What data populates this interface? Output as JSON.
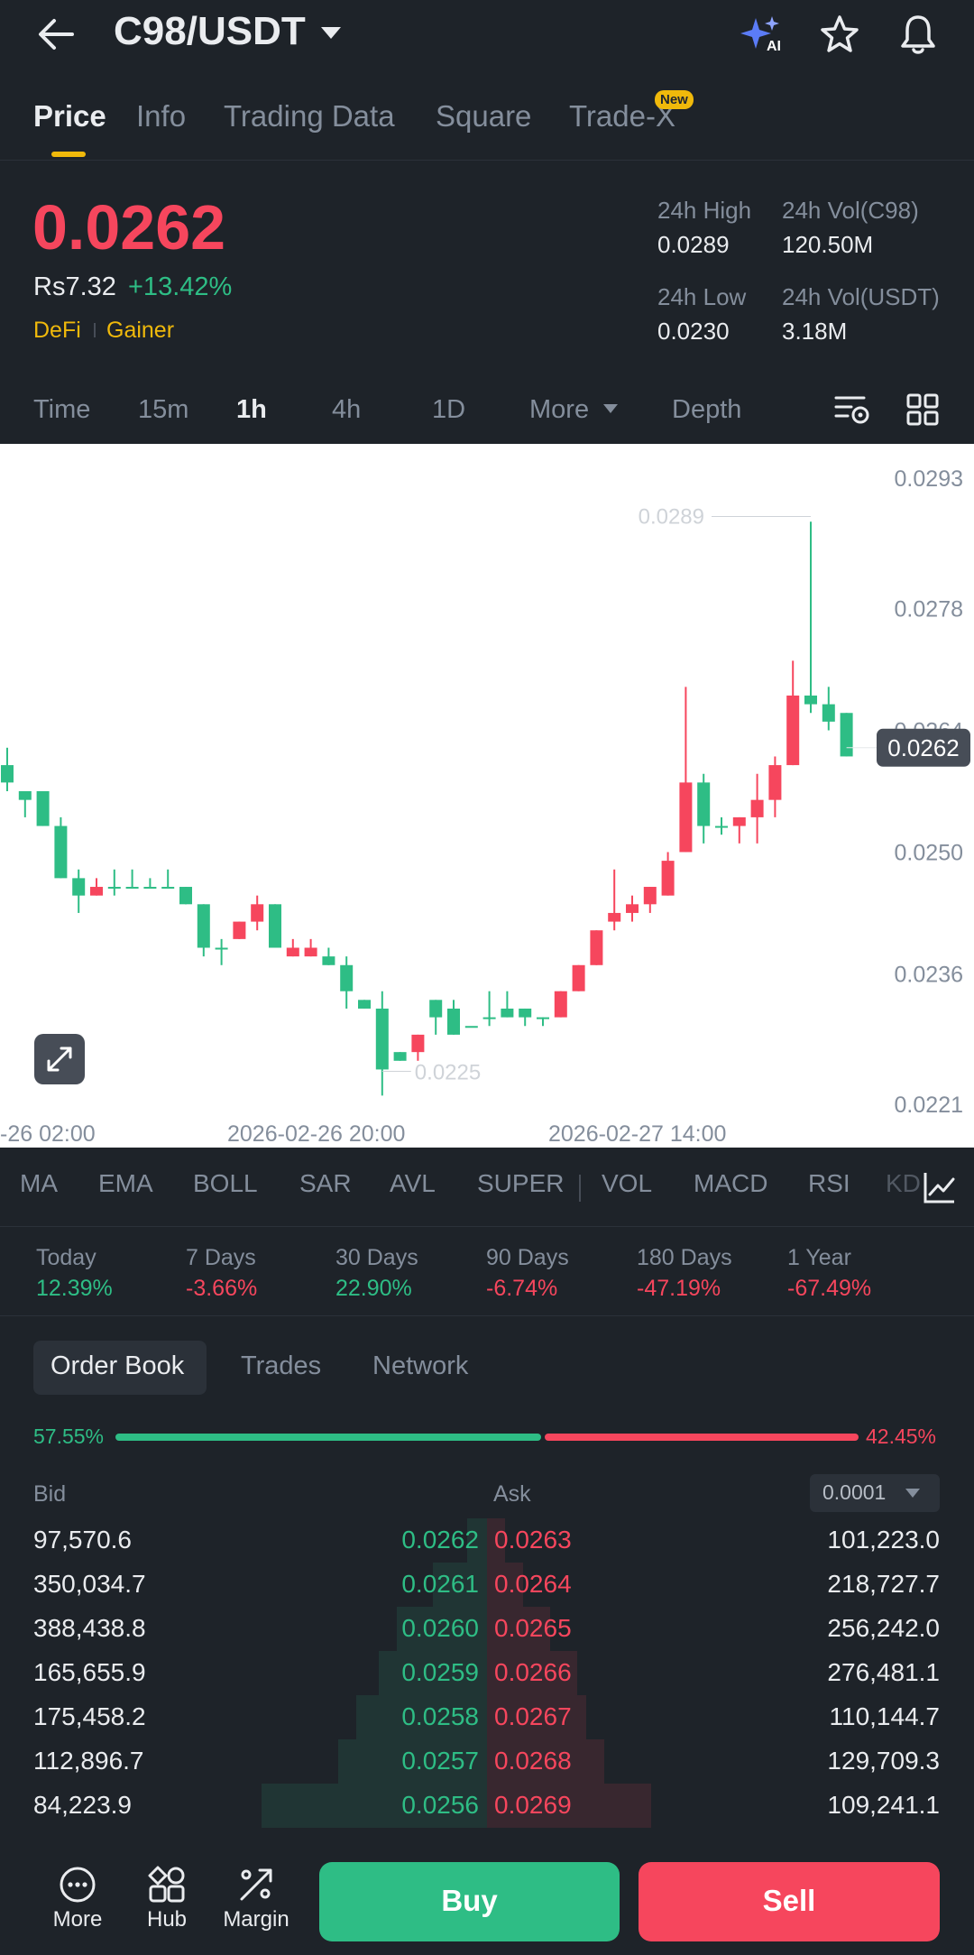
{
  "header": {
    "pair": "C98/USDT"
  },
  "tabs": [
    {
      "label": "Price"
    },
    {
      "label": "Info"
    },
    {
      "label": "Trading Data"
    },
    {
      "label": "Square"
    },
    {
      "label": "Trade-X"
    }
  ],
  "new_badge": "New",
  "price": {
    "last": "0.0262",
    "fiat": "Rs7.32",
    "change": "+13.42%",
    "tags": [
      "DeFi",
      "Gainer"
    ]
  },
  "stats": {
    "high_label": "24h High",
    "high_value": "0.0289",
    "vol_base_label": "24h Vol(C98)",
    "vol_base_value": "120.50M",
    "low_label": "24h Low",
    "low_value": "0.0230",
    "vol_quote_label": "24h Vol(USDT)",
    "vol_quote_value": "3.18M"
  },
  "intervals": [
    "Time",
    "15m",
    "1h",
    "4h",
    "1D",
    "More",
    "Depth"
  ],
  "chart_data": {
    "type": "candlestick",
    "y_ticks": [
      "0.0293",
      "0.0278",
      "0.0264",
      "0.0250",
      "0.0236",
      "0.0221"
    ],
    "x_ticks": [
      "-26 02:00",
      "2026-02-26 20:00",
      "2026-02-27 14:00"
    ],
    "ylim": [
      0.0221,
      0.0293
    ],
    "high_marker": "0.0289",
    "low_marker": "0.0225",
    "current_price": "0.0262",
    "up_color": "#2ebd85",
    "down_color": "#f6465d",
    "candles": [
      [
        0.0258,
        0.026,
        0.0262,
        0.0257
      ],
      [
        0.0256,
        0.0257,
        0.0257,
        0.0254
      ],
      [
        0.0253,
        0.0257,
        0.0257,
        0.0253
      ],
      [
        0.0247,
        0.0253,
        0.0254,
        0.0247
      ],
      [
        0.0245,
        0.0247,
        0.0248,
        0.0243
      ],
      [
        0.0246,
        0.0245,
        0.0247,
        0.0245
      ],
      [
        0.0246,
        0.0246,
        0.0248,
        0.0245
      ],
      [
        0.0246,
        0.0246,
        0.0248,
        0.0246
      ],
      [
        0.0246,
        0.0246,
        0.0247,
        0.0246
      ],
      [
        0.0246,
        0.0246,
        0.0248,
        0.0246
      ],
      [
        0.0244,
        0.0246,
        0.0246,
        0.0244
      ],
      [
        0.0239,
        0.0244,
        0.0244,
        0.0238
      ],
      [
        0.0239,
        0.0239,
        0.024,
        0.0237
      ],
      [
        0.0242,
        0.024,
        0.0242,
        0.024
      ],
      [
        0.0244,
        0.0242,
        0.0245,
        0.0241
      ],
      [
        0.0239,
        0.0244,
        0.0244,
        0.0239
      ],
      [
        0.0239,
        0.0238,
        0.024,
        0.0238
      ],
      [
        0.0239,
        0.0238,
        0.024,
        0.0238
      ],
      [
        0.0237,
        0.0238,
        0.0239,
        0.0237
      ],
      [
        0.0234,
        0.0237,
        0.0238,
        0.0232
      ],
      [
        0.0232,
        0.0233,
        0.0233,
        0.0232
      ],
      [
        0.0225,
        0.0232,
        0.0234,
        0.0222
      ],
      [
        0.0226,
        0.0227,
        0.0227,
        0.0226
      ],
      [
        0.0229,
        0.0227,
        0.0229,
        0.0226
      ],
      [
        0.0231,
        0.0233,
        0.0233,
        0.0229
      ],
      [
        0.0229,
        0.0232,
        0.0233,
        0.0229
      ],
      [
        0.023,
        0.023,
        0.023,
        0.023
      ],
      [
        0.0231,
        0.0231,
        0.0234,
        0.023
      ],
      [
        0.0231,
        0.0232,
        0.0234,
        0.0231
      ],
      [
        0.0231,
        0.0232,
        0.0232,
        0.023
      ],
      [
        0.0231,
        0.0231,
        0.0231,
        0.023
      ],
      [
        0.0234,
        0.0231,
        0.0234,
        0.0231
      ],
      [
        0.0237,
        0.0234,
        0.0237,
        0.0234
      ],
      [
        0.0241,
        0.0237,
        0.0241,
        0.0237
      ],
      [
        0.0243,
        0.0242,
        0.0248,
        0.0241
      ],
      [
        0.0244,
        0.0243,
        0.0245,
        0.0242
      ],
      [
        0.0246,
        0.0244,
        0.0246,
        0.0243
      ],
      [
        0.0249,
        0.0245,
        0.025,
        0.0245
      ],
      [
        0.0258,
        0.025,
        0.0269,
        0.025
      ],
      [
        0.0253,
        0.0258,
        0.0259,
        0.0251
      ],
      [
        0.0253,
        0.0253,
        0.0254,
        0.0252
      ],
      [
        0.0254,
        0.0253,
        0.0254,
        0.0251
      ],
      [
        0.0256,
        0.0254,
        0.0259,
        0.0251
      ],
      [
        0.026,
        0.0256,
        0.0261,
        0.0254
      ],
      [
        0.0268,
        0.026,
        0.0272,
        0.026
      ],
      [
        0.0267,
        0.0268,
        0.0288,
        0.0266
      ],
      [
        0.0265,
        0.0267,
        0.0269,
        0.0264
      ],
      [
        0.0261,
        0.0266,
        0.0266,
        0.0261
      ]
    ]
  },
  "indicators": [
    "MA",
    "EMA",
    "BOLL",
    "SAR",
    "AVL",
    "SUPER",
    "VOL",
    "MACD",
    "RSI",
    "KD"
  ],
  "performance": [
    {
      "label": "Today",
      "value": "12.39%",
      "color": "#2ebd85"
    },
    {
      "label": "7 Days",
      "value": "-3.66%",
      "color": "#f6465d"
    },
    {
      "label": "30 Days",
      "value": "22.90%",
      "color": "#2ebd85"
    },
    {
      "label": "90 Days",
      "value": "-6.74%",
      "color": "#f6465d"
    },
    {
      "label": "180 Days",
      "value": "-47.19%",
      "color": "#f6465d"
    },
    {
      "label": "1 Year",
      "value": "-67.49%",
      "color": "#f6465d"
    }
  ],
  "orderbook_tabs": [
    "Order Book",
    "Trades",
    "Network"
  ],
  "orderbook": {
    "bid_ratio": "57.55%",
    "ask_ratio": "42.45%",
    "bid_ratio_fraction": 0.5755,
    "bid_header": "Bid",
    "ask_header": "Ask",
    "precision": "0.0001",
    "rows": [
      {
        "bid_qty": "97,570.6",
        "bid_price": "0.0262",
        "ask_price": "0.0263",
        "ask_qty": "101,223.0"
      },
      {
        "bid_qty": "350,034.7",
        "bid_price": "0.0261",
        "ask_price": "0.0264",
        "ask_qty": "218,727.7"
      },
      {
        "bid_qty": "388,438.8",
        "bid_price": "0.0260",
        "ask_price": "0.0265",
        "ask_qty": "256,242.0"
      },
      {
        "bid_qty": "165,655.9",
        "bid_price": "0.0259",
        "ask_price": "0.0266",
        "ask_qty": "276,481.1"
      },
      {
        "bid_qty": "175,458.2",
        "bid_price": "0.0258",
        "ask_price": "0.0267",
        "ask_qty": "110,144.7"
      },
      {
        "bid_qty": "112,896.7",
        "bid_price": "0.0257",
        "ask_price": "0.0268",
        "ask_qty": "129,709.3"
      },
      {
        "bid_qty": "84,223.9",
        "bid_price": "0.0256",
        "ask_price": "0.0269",
        "ask_qty": "109,241.1"
      }
    ]
  },
  "bottom_nav": {
    "more": "More",
    "hub": "Hub",
    "margin": "Margin",
    "buy": "Buy",
    "sell": "Sell"
  }
}
